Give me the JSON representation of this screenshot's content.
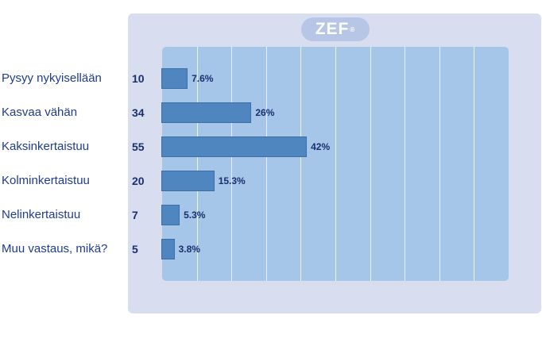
{
  "logo": {
    "text": "ZEF",
    "mark": "®"
  },
  "chart_data": {
    "type": "bar",
    "orientation": "horizontal",
    "categories": [
      "Pysyy nykyisellään",
      "Kasvaa vähän",
      "Kaksinkertaistuu",
      "Kolminkertaistuu",
      "Nelinkertaistuu",
      "Muu vastaus, mikä?"
    ],
    "counts": [
      10,
      34,
      55,
      20,
      7,
      5
    ],
    "values": [
      7.6,
      26,
      42,
      15.3,
      5.3,
      3.8
    ],
    "value_labels": [
      "7.6%",
      "26%",
      "42%",
      "15.3%",
      "5.3%",
      "3.8%"
    ],
    "xlim": [
      0,
      100
    ],
    "grid": true,
    "colors": {
      "bar": "#5086c0",
      "plot_bg": "#a5c6e8",
      "frame_bg": "#d8ddef",
      "text": "#1f3c8d"
    }
  }
}
